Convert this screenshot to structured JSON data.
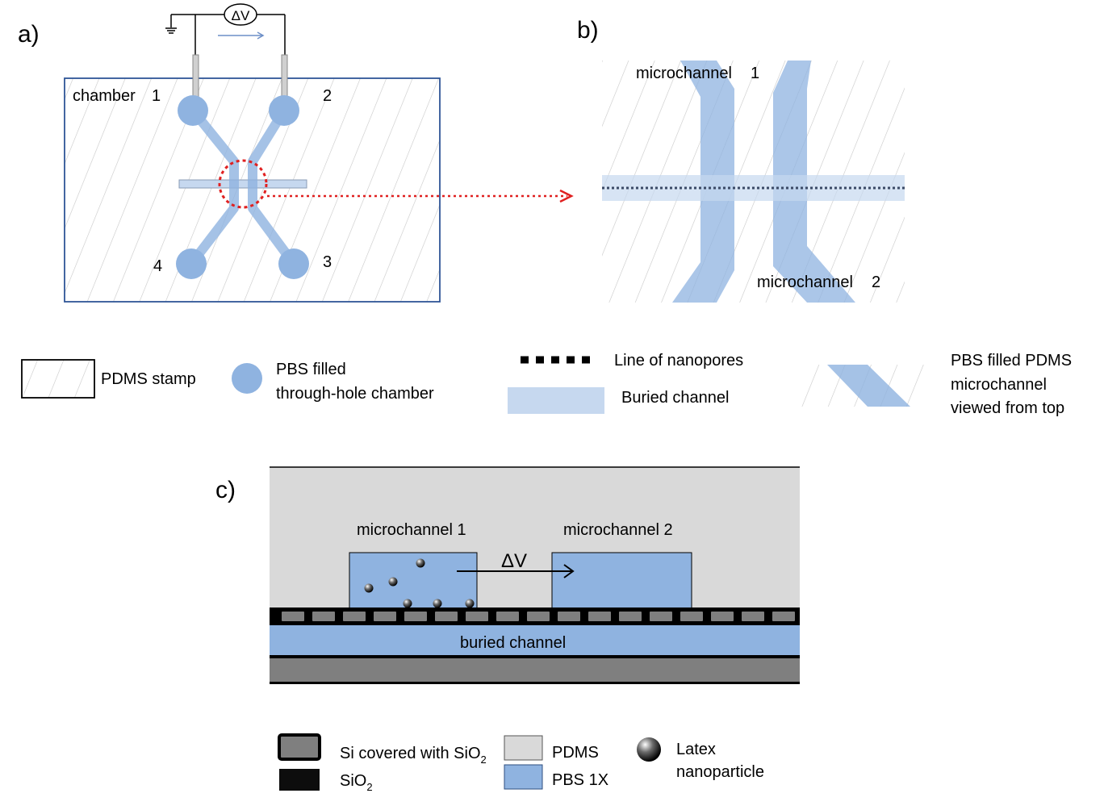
{
  "panel_a": {
    "label": "a)",
    "voltage": "ΔV",
    "chambers": [
      {
        "number": "1",
        "name": "chamber"
      },
      {
        "number": "2"
      },
      {
        "number": "3"
      },
      {
        "number": "4"
      }
    ]
  },
  "panel_b": {
    "label": "b)",
    "microchannel_1": "microchannel",
    "microchannel_1_num": "1",
    "microchannel_2": "microchannel",
    "microchannel_2_num": "2"
  },
  "legend_top": {
    "pdms_stamp": "PDMS stamp",
    "pbs_chamber_line1": "PBS filled",
    "pbs_chamber_line2": "through-hole chamber",
    "nanopores": "Line of nanopores",
    "buried": "Buried channel",
    "pbs_micro_line1": "PBS filled PDMS",
    "pbs_micro_line2": "microchannel",
    "pbs_micro_line3": "viewed from top"
  },
  "panel_c": {
    "label": "c)",
    "microchannel_1": "microchannel 1",
    "microchannel_2": "microchannel 2",
    "voltage": "ΔV",
    "buried_channel": "buried channel"
  },
  "legend_bottom": {
    "si_text": "Si covered with SiO",
    "si_sub": "2",
    "sio2_text": "SiO",
    "sio2_sub": "2",
    "pdms": "PDMS",
    "pbs": "PBS 1X",
    "latex_line1": "Latex",
    "latex_line2": "nanoparticle"
  },
  "colors": {
    "pbs_blue": "#8fb3e0",
    "buried_light": "#c6d8ef",
    "pdms_grey": "#d9d9d9",
    "substrate": "#7f7f7f",
    "nanopore_red": "#e02020",
    "frame_blue": "#2f5597"
  }
}
